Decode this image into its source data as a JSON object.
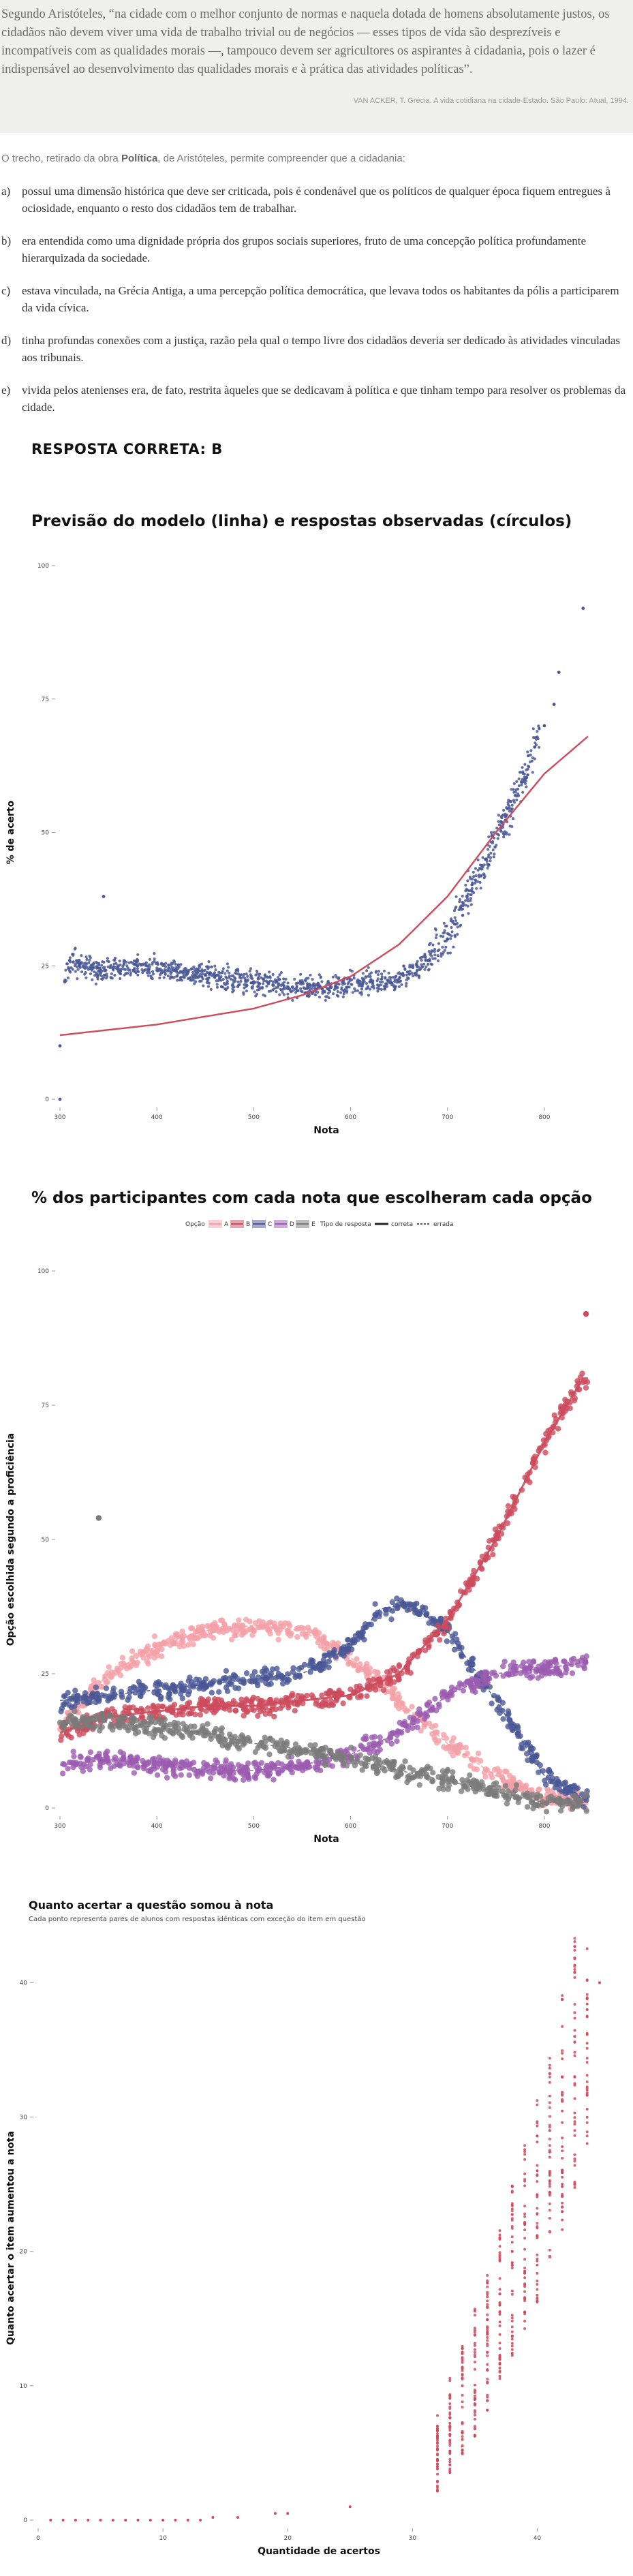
{
  "quote": {
    "text": "Segundo Aristóteles, “na cidade com o melhor conjunto de normas e naquela dotada de homens absolutamente justos, os cidadãos não devem viver uma vida de trabalho trivial ou de negócios — esses tipos de vida são desprezíveis e incompatíveis com as qualidades morais —, tampouco devem ser agricultores os aspirantes à cidadania, pois o lazer é indispensável ao desenvolvimento das qualidades morais e à prática das atividades políticas”.",
    "source": "VAN ACKER, T. Grécia. A vida cotidiana na cidade-Estado. São Paulo: Atual, 1994."
  },
  "intro": {
    "before": "O trecho, retirado da obra ",
    "bold": "Política",
    "after": ", de Aristóteles, permite compreender que a cidadania:"
  },
  "options": [
    {
      "letter": "a)",
      "text": "possui uma dimensão histórica que deve ser criticada, pois é condenável que os políticos de qualquer época fiquem entregues à ociosidade, enquanto o resto dos cidadãos tem de trabalhar."
    },
    {
      "letter": "b)",
      "text": "era entendida como uma dignidade própria dos grupos sociais superiores, fruto de uma concepção política profundamente hierarquizada da sociedade."
    },
    {
      "letter": "c)",
      "text": "estava vinculada, na Grécia Antiga, a uma percepção política democrática, que levava todos os habitantes da pólis a participarem da vida cívica."
    },
    {
      "letter": "d)",
      "text": "tinha profundas conexões com a justiça, razão pela qual o tempo livre dos cidadãos deveria ser dedicado às atividades vinculadas aos tribunais."
    },
    {
      "letter": "e)",
      "text": "vivida pelos atenienses era, de fato, restrita àqueles que se dedicavam à política e que tinham tempo para resolver os problemas da cidade."
    }
  ],
  "answer": "RESPOSTA CORRETA: B",
  "colors": {
    "A": "#f4a0a8",
    "B": "#cc4b5d",
    "C": "#4a5896",
    "D": "#9b5bb0",
    "E": "#7a7a7a",
    "model_line": "#cc4b5d",
    "points": "#4a5896"
  },
  "chart_data": [
    {
      "type": "scatter",
      "title": "Previsão do modelo (linha) e respostas observadas (círculos)",
      "xlabel": "Nota",
      "ylabel": "% de acerto",
      "xlim": [
        300,
        850
      ],
      "ylim": [
        0,
        100
      ],
      "xticks": [
        "300",
        "400",
        "500",
        "600",
        "700",
        "800"
      ],
      "yticks": [
        "0",
        "25",
        "50",
        "75",
        "100"
      ],
      "grid": false,
      "series": [
        {
          "kind": "line",
          "points": [
            [
              300,
              12
            ],
            [
              400,
              14
            ],
            [
              500,
              17
            ],
            [
              550,
              19.5
            ],
            [
              600,
              23
            ],
            [
              650,
              29
            ],
            [
              700,
              38
            ],
            [
              750,
              50
            ],
            [
              800,
              61
            ],
            [
              845,
              68
            ]
          ]
        },
        {
          "kind": "points",
          "points": [
            [
              300,
              0
            ],
            [
              300,
              10
            ],
            [
              305,
              22
            ],
            [
              310,
              26
            ],
            [
              320,
              25
            ],
            [
              340,
              24
            ],
            [
              345,
              38
            ],
            [
              380,
              25
            ],
            [
              420,
              24
            ],
            [
              460,
              23
            ],
            [
              500,
              22
            ],
            [
              540,
              21
            ],
            [
              580,
              21
            ],
            [
              620,
              22
            ],
            [
              650,
              22
            ],
            [
              680,
              26
            ],
            [
              700,
              30
            ],
            [
              720,
              38
            ],
            [
              740,
              45
            ],
            [
              760,
              53
            ],
            [
              780,
              60
            ],
            [
              790,
              66
            ],
            [
              800,
              70
            ],
            [
              810,
              74
            ],
            [
              815,
              80
            ],
            [
              840,
              92
            ]
          ]
        }
      ]
    },
    {
      "type": "scatter",
      "title": "% dos participantes com cada nota que escolheram cada opção",
      "xlabel": "Nota",
      "ylabel": "Opção escolhida segundo a proficiência",
      "xlim": [
        300,
        850
      ],
      "ylim": [
        0,
        100
      ],
      "xticks": [
        "300",
        "400",
        "500",
        "600",
        "700",
        "800"
      ],
      "yticks": [
        "0",
        "25",
        "50",
        "75",
        "100"
      ],
      "legend": {
        "position": "top",
        "option_title": "Opção",
        "options": [
          "A",
          "B",
          "C",
          "D",
          "E"
        ],
        "type_title": "Tipo de resposta",
        "types": [
          "correta",
          "errada"
        ]
      },
      "series": [
        {
          "name": "A",
          "points": [
            [
              300,
              15
            ],
            [
              350,
              25
            ],
            [
              400,
              30
            ],
            [
              450,
              33
            ],
            [
              500,
              34
            ],
            [
              550,
              33
            ],
            [
              600,
              28
            ],
            [
              650,
              20
            ],
            [
              700,
              12
            ],
            [
              750,
              6
            ],
            [
              800,
              2
            ],
            [
              840,
              1
            ]
          ]
        },
        {
          "name": "B",
          "points": [
            [
              300,
              14
            ],
            [
              350,
              17
            ],
            [
              400,
              18
            ],
            [
              450,
              19
            ],
            [
              500,
              19
            ],
            [
              550,
              20
            ],
            [
              600,
              21
            ],
            [
              650,
              25
            ],
            [
              700,
              35
            ],
            [
              750,
              50
            ],
            [
              800,
              68
            ],
            [
              840,
              80
            ]
          ]
        },
        {
          "name": "C",
          "points": [
            [
              300,
              20
            ],
            [
              350,
              21
            ],
            [
              400,
              22
            ],
            [
              450,
              23
            ],
            [
              500,
              24
            ],
            [
              550,
              25
            ],
            [
              600,
              30
            ],
            [
              630,
              37
            ],
            [
              660,
              38
            ],
            [
              700,
              33
            ],
            [
              750,
              20
            ],
            [
              800,
              6
            ],
            [
              840,
              2
            ]
          ]
        },
        {
          "name": "D",
          "points": [
            [
              300,
              8
            ],
            [
              350,
              9
            ],
            [
              400,
              8
            ],
            [
              450,
              7
            ],
            [
              500,
              7
            ],
            [
              550,
              8
            ],
            [
              600,
              10
            ],
            [
              650,
              14
            ],
            [
              700,
              21
            ],
            [
              750,
              25
            ],
            [
              800,
              26
            ],
            [
              840,
              27
            ]
          ]
        },
        {
          "name": "E",
          "points": [
            [
              300,
              16
            ],
            [
              350,
              16
            ],
            [
              400,
              15
            ],
            [
              450,
              14
            ],
            [
              500,
              12
            ],
            [
              550,
              11
            ],
            [
              600,
              9
            ],
            [
              650,
              7
            ],
            [
              700,
              5
            ],
            [
              750,
              3
            ],
            [
              800,
              1
            ],
            [
              840,
              1
            ]
          ]
        }
      ]
    },
    {
      "type": "scatter",
      "title": "Quanto acertar a questão somou à nota",
      "subtitle": "Cada ponto representa pares de alunos com respostas idênticas com exceção do item em questão",
      "xlabel": "Quantidade de acertos",
      "ylabel": "Quanto acertar o item aumentou a nota",
      "xlim": [
        0,
        45
      ],
      "ylim": [
        0,
        42
      ],
      "xticks": [
        "0",
        "10",
        "20",
        "30",
        "40"
      ],
      "yticks": [
        "0",
        "10",
        "20",
        "30",
        "40"
      ],
      "series": [
        {
          "name": "pares",
          "points": [
            [
              1,
              0
            ],
            [
              2,
              0
            ],
            [
              3,
              0
            ],
            [
              4,
              0
            ],
            [
              5,
              0
            ],
            [
              6,
              0
            ],
            [
              7,
              0
            ],
            [
              8,
              0
            ],
            [
              9,
              0
            ],
            [
              10,
              0
            ],
            [
              11,
              0
            ],
            [
              12,
              0
            ],
            [
              13,
              0
            ],
            [
              14,
              0.2
            ],
            [
              16,
              0.2
            ],
            [
              19,
              0.5
            ],
            [
              20,
              0.5
            ],
            [
              25,
              1
            ],
            [
              32,
              4
            ],
            [
              32,
              7
            ],
            [
              33,
              5
            ],
            [
              34,
              6
            ],
            [
              34,
              10
            ],
            [
              35,
              9
            ],
            [
              36,
              14
            ],
            [
              37,
              16
            ],
            [
              38,
              20
            ],
            [
              39,
              22
            ],
            [
              40,
              26
            ],
            [
              41,
              29
            ],
            [
              42,
              33
            ],
            [
              43,
              36
            ],
            [
              44,
              38
            ],
            [
              45,
              40
            ]
          ]
        }
      ]
    }
  ]
}
